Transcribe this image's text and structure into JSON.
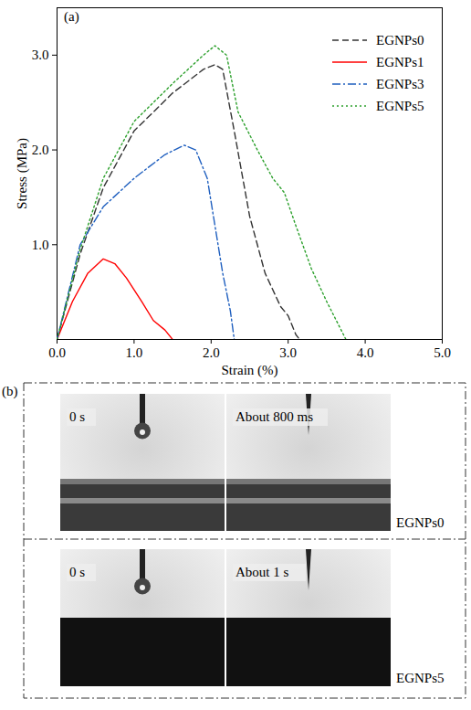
{
  "chart_data": {
    "type": "line",
    "annotations": [
      "(a)"
    ],
    "x_label": "Strain (%)",
    "y_label": "Stress (MPa)",
    "xlim": [
      0,
      5
    ],
    "xticks": [
      0,
      1,
      2,
      3,
      4,
      5
    ],
    "ylim": [
      0,
      3.5
    ],
    "yticks": [
      1,
      2,
      3
    ],
    "legend": "top-right",
    "series": [
      {
        "name": "EGNPs0",
        "color": "#333333",
        "line_style": "dashed",
        "x": [
          0,
          0.3,
          0.6,
          1,
          1.5,
          1.9,
          2.05,
          2.15,
          2.3,
          2.5,
          2.7,
          2.9,
          3.0,
          3.1,
          3.15
        ],
        "values": [
          0,
          0.9,
          1.6,
          2.2,
          2.6,
          2.85,
          2.9,
          2.85,
          2.2,
          1.3,
          0.7,
          0.35,
          0.25,
          0.05,
          0
        ]
      },
      {
        "name": "EGNPs1",
        "color": "#ff0000",
        "line_style": "solid",
        "x": [
          0,
          0.2,
          0.4,
          0.6,
          0.75,
          0.9,
          1.1,
          1.25,
          1.4,
          1.5
        ],
        "values": [
          0,
          0.4,
          0.7,
          0.85,
          0.8,
          0.65,
          0.4,
          0.2,
          0.1,
          0
        ]
      },
      {
        "name": "EGNPs3",
        "color": "#1f5fbf",
        "line_style": "dashdot",
        "x": [
          0,
          0.3,
          0.6,
          1,
          1.4,
          1.65,
          1.8,
          1.95,
          2.05,
          2.15,
          2.25,
          2.3
        ],
        "values": [
          0,
          1.0,
          1.4,
          1.7,
          1.95,
          2.05,
          2.0,
          1.7,
          1.2,
          0.7,
          0.3,
          0
        ]
      },
      {
        "name": "EGNPs5",
        "color": "#2ca02c",
        "line_style": "dotted",
        "x": [
          0,
          0.3,
          0.6,
          1,
          1.5,
          1.9,
          2.05,
          2.2,
          2.35,
          2.6,
          2.8,
          2.95,
          3.1,
          3.3,
          3.5,
          3.75
        ],
        "values": [
          0,
          0.95,
          1.7,
          2.3,
          2.7,
          3.0,
          3.1,
          3.0,
          2.4,
          2.0,
          1.7,
          1.55,
          1.2,
          0.75,
          0.4,
          0
        ]
      }
    ]
  },
  "panel_b": {
    "label": "(b)",
    "rows": [
      {
        "sample": "EGNPs0",
        "frames": [
          "0 s",
          "About 800 ms"
        ]
      },
      {
        "sample": "EGNPs5",
        "frames": [
          "0 s",
          "About 1 s"
        ]
      }
    ]
  }
}
